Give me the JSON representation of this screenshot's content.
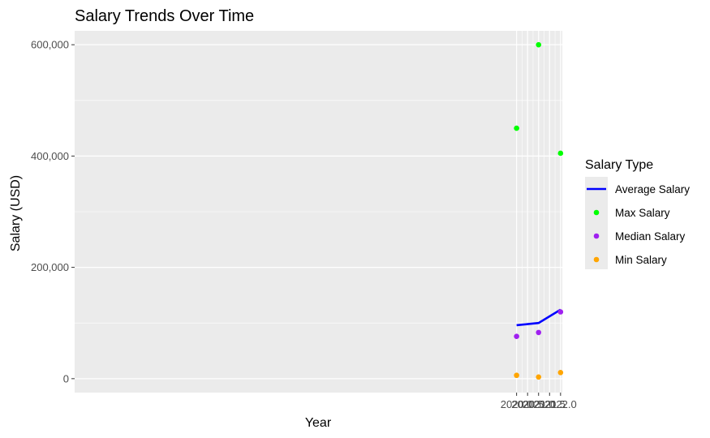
{
  "chart_data": {
    "type": "scatter",
    "title": "Salary Trends Over Time",
    "xlabel": "Year",
    "ylabel": "Salary (USD)",
    "xlim": [
      1999.9,
      2022.08
    ],
    "ylim": [
      -25000,
      625000
    ],
    "x_ticks": [
      2020.0,
      2020.5,
      2021.0,
      2021.5,
      2022.0
    ],
    "x_tick_labels": [
      "2020.0",
      "2020.5",
      "2021.0",
      "2021.5",
      "2022.0"
    ],
    "y_ticks": [
      0,
      200000,
      400000,
      600000
    ],
    "y_tick_labels": [
      "0",
      "200,000",
      "400,000",
      "600,000"
    ],
    "grid": true,
    "legend": {
      "title": "Salary Type",
      "position": "right"
    },
    "x": [
      2020,
      2021,
      2022
    ],
    "series": [
      {
        "name": "Average Salary",
        "kind": "line",
        "color": "#0000ff",
        "values": [
          96000,
          100000,
          124000
        ]
      },
      {
        "name": "Max Salary",
        "kind": "point",
        "color": "#00ff00",
        "values": [
          450000,
          600000,
          405000
        ]
      },
      {
        "name": "Median Salary",
        "kind": "point",
        "color": "#a020f0",
        "values": [
          76000,
          83000,
          120000
        ]
      },
      {
        "name": "Min Salary",
        "kind": "point",
        "color": "#ffa500",
        "values": [
          6000,
          3000,
          11000
        ]
      }
    ]
  }
}
